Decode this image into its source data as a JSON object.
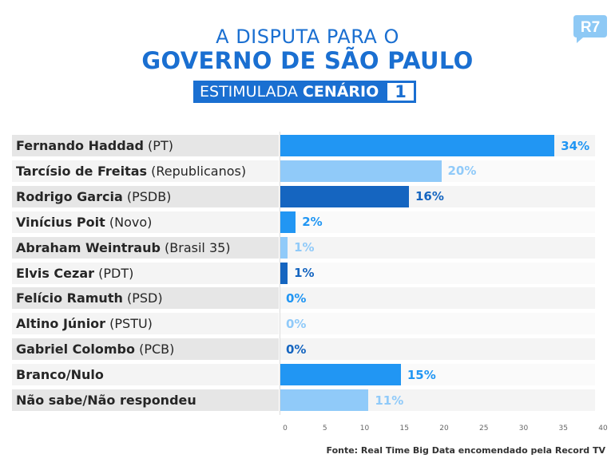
{
  "header": {
    "line1": "A DISPUTA PARA O",
    "line2": "GOVERNO DE SÃO PAULO",
    "subtitle_a": "ESTIMULADA",
    "subtitle_b": "CENÁRIO",
    "subtitle_num": "1"
  },
  "logo": {
    "text": "R7",
    "color": "#8ec9f5"
  },
  "colors": {
    "row_a": "#e6e6e6",
    "row_b": "#f4f4f4"
  },
  "chart_data": {
    "type": "bar",
    "orientation": "horizontal",
    "xlim": [
      0,
      40
    ],
    "ticks": [
      0,
      5,
      10,
      15,
      20,
      25,
      30,
      35,
      40
    ],
    "grid": false,
    "categories": [
      {
        "name": "Fernando Haddad",
        "party": "(PT)"
      },
      {
        "name": "Tarcísio de Freitas",
        "party": "(Republicanos)"
      },
      {
        "name": "Rodrigo Garcia",
        "party": "(PSDB)"
      },
      {
        "name": "Vinícius Poit",
        "party": "(Novo)"
      },
      {
        "name": "Abraham Weintraub",
        "party": "(Brasil 35)"
      },
      {
        "name": "Elvis Cezar",
        "party": "(PDT)"
      },
      {
        "name": "Felício Ramuth",
        "party": "(PSD)"
      },
      {
        "name": "Altino Júnior",
        "party": "(PSTU)"
      },
      {
        "name": "Gabriel Colombo",
        "party": "(PCB)"
      },
      {
        "name": "Branco/Nulo",
        "party": ""
      },
      {
        "name": "Não sabe/Não respondeu",
        "party": ""
      }
    ],
    "values": [
      34,
      20,
      16,
      2,
      1,
      1,
      0,
      0,
      0,
      15,
      11
    ],
    "value_labels": [
      "34%",
      "20%",
      "16%",
      "2%",
      "1%",
      "1%",
      "0%",
      "0%",
      "0%",
      "15%",
      "11%"
    ],
    "bar_colors": [
      "#2196f3",
      "#90caf9",
      "#1565c0",
      "#2196f3",
      "#90caf9",
      "#1565c0",
      "#2196f3",
      "#90caf9",
      "#1565c0",
      "#2196f3",
      "#90caf9"
    ]
  },
  "source": "Fonte: Real Time Big Data encomendado pela Record TV"
}
